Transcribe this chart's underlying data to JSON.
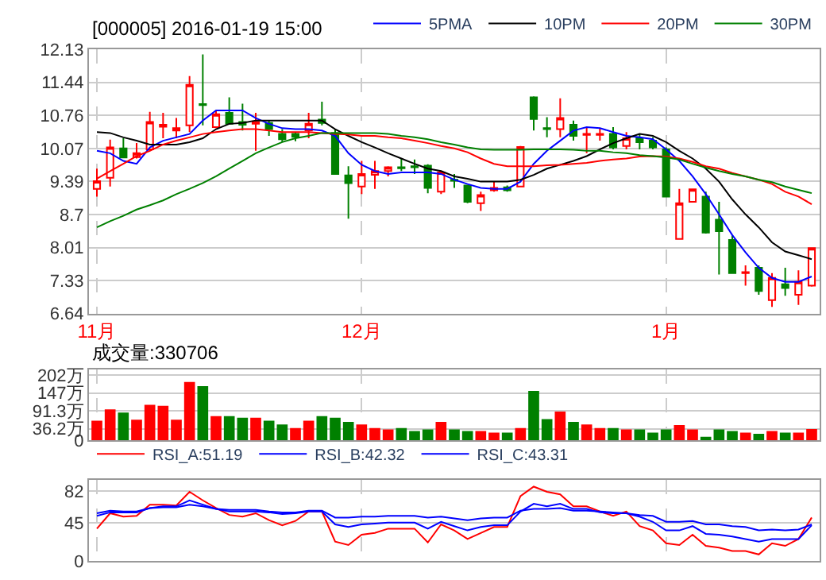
{
  "chart_data": [
    {
      "type": "candlestick",
      "title": "[000005] 2016-01-19 15:00",
      "categories": [
        "11月",
        null,
        null,
        null,
        null,
        null,
        null,
        null,
        null,
        null,
        null,
        null,
        null,
        null,
        null,
        null,
        null,
        null,
        null,
        null,
        "12月",
        null,
        null,
        null,
        null,
        null,
        null,
        null,
        null,
        null,
        null,
        null,
        null,
        null,
        null,
        null,
        null,
        null,
        null,
        null,
        null,
        null,
        null,
        "1月",
        null,
        null,
        null,
        null,
        null,
        null,
        null,
        null,
        null,
        null,
        null
      ],
      "ohlc": [
        [
          9.23,
          9.65,
          9.07,
          9.39
        ],
        [
          9.46,
          10.25,
          9.28,
          10.09
        ],
        [
          10.07,
          10.28,
          9.88,
          9.88
        ],
        [
          9.89,
          10.18,
          9.86,
          9.97
        ],
        [
          10.05,
          10.83,
          10.02,
          10.62
        ],
        [
          10.52,
          10.81,
          10.28,
          10.56
        ],
        [
          10.44,
          10.7,
          10.28,
          10.49
        ],
        [
          10.55,
          11.57,
          10.41,
          11.39
        ],
        [
          10.99,
          12.02,
          10.55,
          10.97
        ],
        [
          10.51,
          10.86,
          10.49,
          10.78
        ],
        [
          10.81,
          11.13,
          10.58,
          10.58
        ],
        [
          10.62,
          11.0,
          10.44,
          10.56
        ],
        [
          10.58,
          10.81,
          10.02,
          10.62
        ],
        [
          10.6,
          10.65,
          10.33,
          10.47
        ],
        [
          10.37,
          10.47,
          10.2,
          10.26
        ],
        [
          10.37,
          10.41,
          10.22,
          10.31
        ],
        [
          10.44,
          10.81,
          10.28,
          10.58
        ],
        [
          10.67,
          11.04,
          10.55,
          10.6
        ],
        [
          10.39,
          10.47,
          9.54,
          9.54
        ],
        [
          9.51,
          9.7,
          8.61,
          9.35
        ],
        [
          9.28,
          9.81,
          9.12,
          9.54
        ],
        [
          9.52,
          9.81,
          9.23,
          9.6
        ],
        [
          9.6,
          9.7,
          9.49,
          9.68
        ],
        [
          9.68,
          9.86,
          9.6,
          9.66
        ],
        [
          9.7,
          9.84,
          9.54,
          9.68
        ],
        [
          9.71,
          9.74,
          9.14,
          9.25
        ],
        [
          9.17,
          9.6,
          9.12,
          9.57
        ],
        [
          9.42,
          9.54,
          9.25,
          9.4
        ],
        [
          9.3,
          9.3,
          8.93,
          8.96
        ],
        [
          8.93,
          9.17,
          8.77,
          9.1
        ],
        [
          9.2,
          9.39,
          9.17,
          9.25
        ],
        [
          9.26,
          9.3,
          9.17,
          9.2
        ],
        [
          9.28,
          10.12,
          9.28,
          10.1
        ],
        [
          11.13,
          11.15,
          10.44,
          10.68
        ],
        [
          10.49,
          10.72,
          10.3,
          10.47
        ],
        [
          10.47,
          11.11,
          10.3,
          10.7
        ],
        [
          10.56,
          10.65,
          10.23,
          10.33
        ],
        [
          10.35,
          10.51,
          9.97,
          10.37
        ],
        [
          10.35,
          10.49,
          10.23,
          10.37
        ],
        [
          10.37,
          10.51,
          10.05,
          10.09
        ],
        [
          10.12,
          10.41,
          10.05,
          10.28
        ],
        [
          10.28,
          10.37,
          10.05,
          10.2
        ],
        [
          10.23,
          10.3,
          10.05,
          10.09
        ],
        [
          10.05,
          10.09,
          9.07,
          9.07
        ],
        [
          8.19,
          9.23,
          8.19,
          8.93
        ],
        [
          8.96,
          9.22,
          8.96,
          9.22
        ],
        [
          9.07,
          9.17,
          8.3,
          8.32
        ],
        [
          8.59,
          8.96,
          7.45,
          8.35
        ],
        [
          8.17,
          8.27,
          7.48,
          7.48
        ],
        [
          7.48,
          7.64,
          7.22,
          7.5
        ],
        [
          7.59,
          7.64,
          7.03,
          7.11
        ],
        [
          6.92,
          7.48,
          6.78,
          7.38
        ],
        [
          7.25,
          7.59,
          7.01,
          7.17
        ],
        [
          7.03,
          7.54,
          6.82,
          7.3
        ],
        [
          7.22,
          8.01,
          7.2,
          8.0
        ]
      ],
      "series": [
        {
          "type": "line",
          "name": "5PMA",
          "color": "#0000ff",
          "values": [
            10.02,
            9.97,
            9.81,
            9.75,
            10.09,
            10.23,
            10.3,
            10.37,
            10.65,
            10.86,
            10.86,
            10.86,
            10.7,
            10.58,
            10.49,
            10.47,
            10.47,
            10.44,
            10.33,
            9.97,
            9.73,
            9.6,
            9.54,
            9.57,
            9.57,
            9.57,
            9.54,
            9.42,
            9.33,
            9.25,
            9.23,
            9.23,
            9.38,
            9.75,
            10.02,
            10.23,
            10.44,
            10.51,
            10.49,
            10.41,
            10.33,
            10.3,
            10.26,
            10.05,
            9.81,
            9.49,
            9.12,
            8.7,
            8.27,
            7.91,
            7.59,
            7.38,
            7.3,
            7.3,
            7.41
          ]
        },
        {
          "type": "line",
          "name": "10PM",
          "color": "#000000",
          "values": [
            10.41,
            10.39,
            10.3,
            10.23,
            10.15,
            10.15,
            10.15,
            10.2,
            10.28,
            10.47,
            10.58,
            10.6,
            10.65,
            10.65,
            10.65,
            10.65,
            10.65,
            10.65,
            10.47,
            10.33,
            10.2,
            10.09,
            9.97,
            9.86,
            9.75,
            9.65,
            9.6,
            9.49,
            9.44,
            9.38,
            9.38,
            9.38,
            9.42,
            9.52,
            9.65,
            9.73,
            9.81,
            9.91,
            10.05,
            10.18,
            10.28,
            10.37,
            10.33,
            10.2,
            10.02,
            9.86,
            9.65,
            9.38,
            9.01,
            8.7,
            8.43,
            8.12,
            7.93,
            7.85,
            7.77
          ]
        },
        {
          "type": "line",
          "name": "20PM",
          "color": "#ff0000",
          "values": [
            9.44,
            9.6,
            9.75,
            9.91,
            10.02,
            10.15,
            10.23,
            10.3,
            10.37,
            10.41,
            10.44,
            10.47,
            10.47,
            10.44,
            10.41,
            10.41,
            10.41,
            10.39,
            10.37,
            10.36,
            10.33,
            10.33,
            10.3,
            10.28,
            10.23,
            10.18,
            10.12,
            10.07,
            9.99,
            9.86,
            9.75,
            9.7,
            9.7,
            9.7,
            9.72,
            9.73,
            9.75,
            9.77,
            9.81,
            9.84,
            9.86,
            9.9,
            9.91,
            9.9,
            9.86,
            9.79,
            9.7,
            9.65,
            9.56,
            9.49,
            9.42,
            9.33,
            9.17,
            9.07,
            8.91
          ]
        },
        {
          "type": "line",
          "name": "30PM",
          "color": "#008000",
          "values": [
            8.43,
            8.56,
            8.67,
            8.8,
            8.89,
            8.99,
            9.12,
            9.23,
            9.35,
            9.49,
            9.65,
            9.81,
            9.97,
            10.09,
            10.2,
            10.28,
            10.33,
            10.39,
            10.39,
            10.39,
            10.39,
            10.39,
            10.37,
            10.33,
            10.3,
            10.26,
            10.2,
            10.15,
            10.09,
            10.05,
            10.04,
            10.04,
            10.04,
            10.05,
            10.05,
            10.05,
            10.04,
            10.02,
            10.02,
            9.99,
            9.97,
            9.93,
            9.91,
            9.88,
            9.84,
            9.75,
            9.67,
            9.6,
            9.54,
            9.49,
            9.42,
            9.37,
            9.28,
            9.21,
            9.14
          ]
        }
      ],
      "ylim": [
        6.64,
        12.13
      ],
      "yticks": [
        6.64,
        7.33,
        8.01,
        8.7,
        9.39,
        10.07,
        10.76,
        11.44,
        12.13
      ],
      "grid": true,
      "legend": "top right"
    },
    {
      "type": "bar",
      "annotations": [
        "成交量:330706"
      ],
      "categories": [
        null,
        null,
        null,
        null,
        null,
        null,
        null,
        null,
        null,
        null,
        null,
        null,
        null,
        null,
        null,
        null,
        null,
        null,
        null,
        null,
        null,
        null,
        null,
        null,
        null,
        null,
        null,
        null,
        null,
        null,
        null,
        null,
        null,
        null,
        null,
        null,
        null,
        null,
        null,
        null,
        null,
        null,
        null,
        null,
        null,
        null,
        null,
        null,
        null,
        null,
        null,
        null,
        null,
        null,
        null
      ],
      "values": [
        59,
        94,
        84,
        62,
        108,
        105,
        62,
        179,
        166,
        73,
        73,
        68,
        68,
        59,
        47,
        36,
        59,
        73,
        68,
        55,
        47,
        36,
        32,
        36,
        27,
        32,
        55,
        32,
        27,
        27,
        22,
        22,
        36,
        151,
        64,
        87,
        55,
        47,
        36,
        36,
        32,
        32,
        22,
        32,
        45,
        32,
        9,
        32,
        27,
        22,
        18,
        27,
        22,
        22,
        33
      ],
      "colors": [
        "#ff0000",
        "#ff0000",
        "#008000",
        "#ff0000",
        "#ff0000",
        "#ff0000",
        "#ff0000",
        "#ff0000",
        "#008000",
        "#ff0000",
        "#008000",
        "#008000",
        "#ff0000",
        "#008000",
        "#008000",
        "#ff0000",
        "#ff0000",
        "#008000",
        "#008000",
        "#008000",
        "#ff0000",
        "#ff0000",
        "#ff0000",
        "#008000",
        "#008000",
        "#008000",
        "#ff0000",
        "#008000",
        "#008000",
        "#ff0000",
        "#ff0000",
        "#008000",
        "#ff0000",
        "#008000",
        "#008000",
        "#ff0000",
        "#008000",
        "#ff0000",
        "#ff0000",
        "#008000",
        "#ff0000",
        "#008000",
        "#008000",
        "#008000",
        "#ff0000",
        "#ff0000",
        "#008000",
        "#008000",
        "#008000",
        "#ff0000",
        "#008000",
        "#ff0000",
        "#008000",
        "#ff0000",
        "#ff0000"
      ],
      "ylim": [
        0,
        220
      ],
      "yticks": [
        0,
        {
          "value": 36.2,
          "label": "36.2万"
        },
        {
          "value": 91.3,
          "label": "91.3万"
        },
        {
          "value": 147,
          "label": "147万"
        },
        {
          "value": 202,
          "label": "202万"
        }
      ],
      "grid": true,
      "tick_labels": "y"
    },
    {
      "type": "line",
      "categories": [
        null,
        null,
        null,
        null,
        null,
        null,
        null,
        null,
        null,
        null,
        null,
        null,
        null,
        null,
        null,
        null,
        null,
        null,
        null,
        null,
        null,
        null,
        null,
        null,
        null,
        null,
        null,
        null,
        null,
        null,
        null,
        null,
        null,
        null,
        null,
        null,
        null,
        null,
        null,
        null,
        null,
        null,
        null,
        null,
        null,
        null,
        null,
        null,
        null,
        null,
        null,
        null,
        null,
        null,
        null
      ],
      "series": [
        {
          "name": "RSI_A:51.19",
          "color": "#ff0000",
          "values": [
            38,
            56,
            52,
            53,
            66,
            66,
            65,
            81,
            71,
            62,
            54,
            52,
            56,
            48,
            42,
            47,
            58,
            58,
            23,
            19,
            31,
            33,
            38,
            38,
            38,
            22,
            43,
            36,
            26,
            33,
            40,
            40,
            76,
            87,
            81,
            78,
            64,
            64,
            58,
            53,
            58,
            41,
            36,
            21,
            19,
            31,
            18,
            16,
            12,
            12,
            8,
            21,
            18,
            26,
            51
          ]
        },
        {
          "name": "RSI_B:42.32",
          "color": "#0000ff",
          "values": [
            53,
            57,
            57,
            57,
            62,
            64,
            64,
            71,
            66,
            61,
            58,
            58,
            58,
            57,
            55,
            56,
            58,
            58,
            43,
            40,
            43,
            44,
            45,
            45,
            45,
            38,
            46,
            41,
            36,
            40,
            42,
            42,
            58,
            67,
            64,
            67,
            61,
            61,
            57,
            56,
            56,
            52,
            46,
            36,
            36,
            41,
            32,
            31,
            29,
            26,
            23,
            26,
            26,
            26,
            42
          ]
        },
        {
          "name": "RSI_C:43.31",
          "color": "#0000ff",
          "values": [
            56,
            59,
            58,
            58,
            62,
            63,
            63,
            66,
            64,
            61,
            60,
            60,
            60,
            58,
            57,
            57,
            59,
            59,
            51,
            51,
            52,
            52,
            53,
            53,
            53,
            51,
            52,
            50,
            48,
            50,
            51,
            51,
            59,
            61,
            61,
            62,
            59,
            59,
            58,
            57,
            56,
            54,
            53,
            46,
            46,
            47,
            43,
            43,
            41,
            40,
            36,
            37,
            36,
            37,
            43
          ]
        }
      ],
      "ylim": [
        0,
        95
      ],
      "yticks": [
        0,
        45,
        82
      ],
      "grid": true,
      "tick_labels": "y",
      "legend": "top left"
    }
  ]
}
